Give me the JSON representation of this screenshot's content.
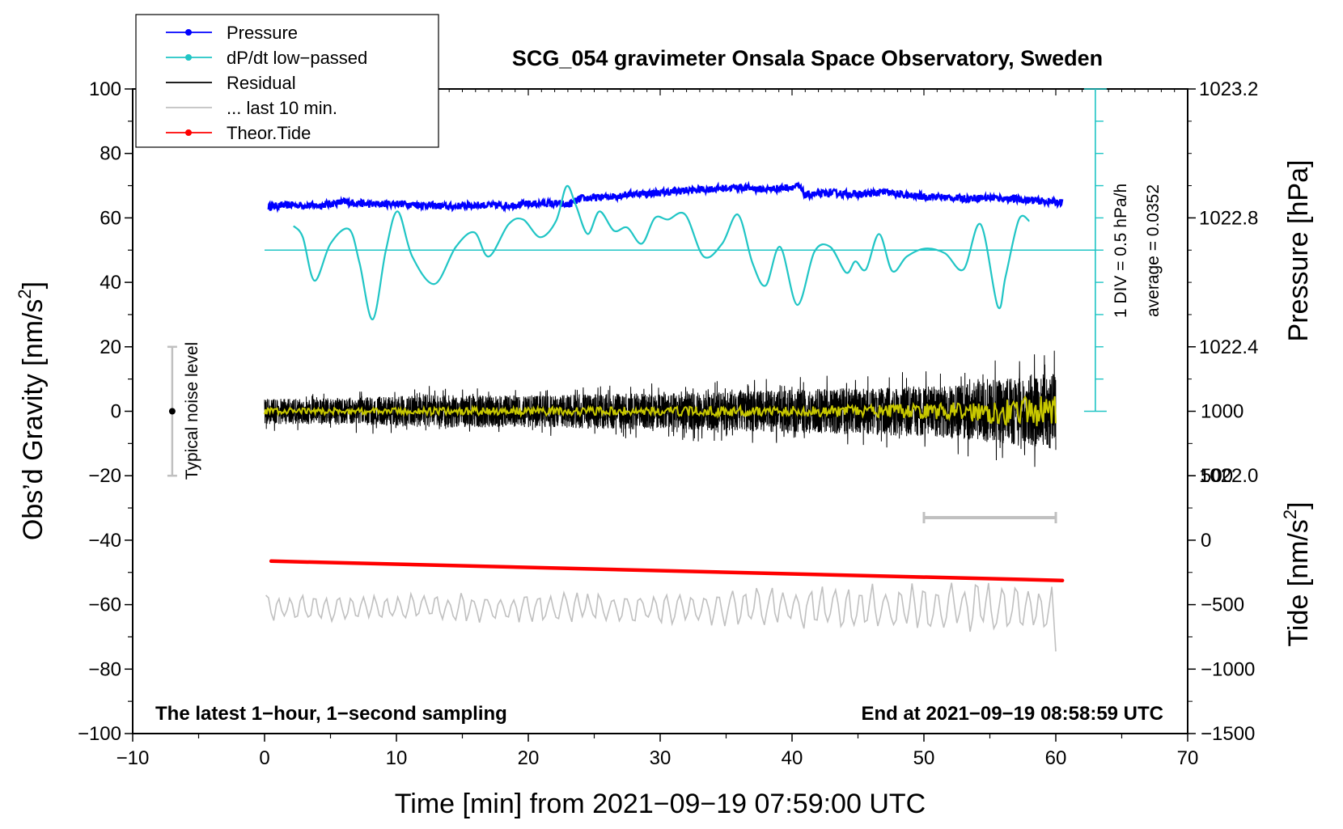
{
  "chart_data": {
    "type": "line",
    "title": "SCG_054 gravimeter Onsala Space Observatory, Sweden",
    "xlabel": "Time [min] from 2021−09−19 07:59:00 UTC",
    "ylabel_left": "Obs’d Gravity [nm/s",
    "ylabel_left_sup": "2",
    "ylabel_left_end": "]",
    "ylabel_right_top": "Pressure [hPa]",
    "ylabel_right_bottom": "Tide [nm/s",
    "ylabel_right_bottom_sup": "2",
    "ylabel_right_bottom_end": "]",
    "xlim": [
      -10,
      70
    ],
    "ylim": [
      -100,
      100
    ],
    "x_ticks": [
      {
        "v": -10,
        "label": "−10"
      },
      {
        "v": 0,
        "label": "0"
      },
      {
        "v": 10,
        "label": "10"
      },
      {
        "v": 20,
        "label": "20"
      },
      {
        "v": 30,
        "label": "30"
      },
      {
        "v": 40,
        "label": "40"
      },
      {
        "v": 50,
        "label": "50"
      },
      {
        "v": 60,
        "label": "60"
      },
      {
        "v": 70,
        "label": "70"
      }
    ],
    "y_ticks": [
      {
        "v": 100,
        "label": "100"
      },
      {
        "v": 80,
        "label": "80"
      },
      {
        "v": 60,
        "label": "60"
      },
      {
        "v": 40,
        "label": "40"
      },
      {
        "v": 20,
        "label": "20"
      },
      {
        "v": 0,
        "label": "0"
      },
      {
        "v": -20,
        "label": "−20"
      },
      {
        "v": -40,
        "label": "−40"
      },
      {
        "v": -60,
        "label": "−60"
      },
      {
        "v": -80,
        "label": "−80"
      },
      {
        "v": -100,
        "label": "−100"
      }
    ],
    "pressure_axis": {
      "ticks": [
        {
          "v": 1023.2,
          "label": "1023.2"
        },
        {
          "v": 1022.8,
          "label": "1022.8"
        },
        {
          "v": 1022.4,
          "label": "1022.4"
        },
        {
          "v": 1022.0,
          "label": "1022.0"
        }
      ],
      "gravity_per_hpa": 100,
      "ref_hpa": 1022.8,
      "ref_gravity": 60
    },
    "tide_axis": {
      "ticks": [
        {
          "v": 1000,
          "label": "1000"
        },
        {
          "v": 500,
          "label": "500"
        },
        {
          "v": 0,
          "label": "0"
        },
        {
          "v": -500,
          "label": "−500"
        },
        {
          "v": -1000,
          "label": "−1000"
        },
        {
          "v": -1500,
          "label": "−1500"
        }
      ],
      "gravity_per_unit": 0.04,
      "ref_tide": -1500,
      "ref_gravity": -100
    },
    "legend": [
      {
        "label": "Pressure",
        "color": "#0000ff",
        "marker": true
      },
      {
        "label": "dP/dt low−passed",
        "color": "#20c5c5",
        "marker": true
      },
      {
        "label": "Residual",
        "color": "#000000",
        "marker": false
      },
      {
        "label": "... last 10 min.",
        "color": "#c0c0c0",
        "marker": false
      },
      {
        "label": "Theor.Tide",
        "color": "#ff0000",
        "marker": true
      }
    ],
    "series": [
      {
        "name": "Pressure",
        "color": "#0000ff",
        "x": [
          0.3,
          2,
          4,
          6,
          8,
          10,
          12,
          14,
          16,
          18,
          20,
          21.5,
          23,
          24,
          26,
          28,
          30,
          32,
          34,
          36,
          38,
          40.5,
          41,
          43,
          45,
          47,
          49,
          51,
          53,
          55,
          57,
          59,
          60.5
        ],
        "y": [
          63.5,
          64.0,
          63.8,
          65.0,
          64.2,
          64.5,
          64.0,
          63.5,
          64.0,
          63.8,
          64.3,
          64.5,
          64.0,
          66.0,
          66.5,
          67.5,
          67.8,
          68.5,
          69.0,
          69.5,
          68.8,
          69.8,
          67.0,
          67.8,
          67.2,
          68.0,
          66.8,
          66.5,
          66.0,
          66.3,
          65.8,
          65.2,
          64.8
        ]
      },
      {
        "name": "dP/dt low−passed",
        "color": "#20c5c5",
        "x": [
          2.2,
          2.9,
          3.8,
          5.0,
          6.4,
          7.2,
          8.2,
          9.2,
          10.1,
          11.2,
          12.9,
          14.5,
          15.9,
          17.0,
          18.5,
          19.6,
          20.9,
          22.1,
          22.9,
          23.6,
          24.5,
          25.4,
          26.5,
          27.5,
          28.6,
          29.6,
          30.6,
          31.9,
          33.3,
          34.7,
          35.9,
          37.0,
          38.0,
          39.1,
          40.4,
          41.7,
          42.9,
          44.1,
          44.8,
          45.6,
          46.6,
          47.6,
          48.7,
          50.1,
          51.6,
          53.0,
          54.3,
          55.6,
          56.2,
          57.2,
          58.0
        ],
        "y": [
          57.5,
          54,
          40.5,
          52,
          56.5,
          46,
          28.5,
          50,
          62,
          48,
          39.5,
          51,
          55.5,
          48,
          58,
          59.5,
          54,
          59,
          69.8,
          64,
          55,
          62,
          56,
          57,
          52,
          60,
          59.5,
          61,
          48,
          52,
          61,
          46,
          39,
          51,
          33,
          49.5,
          51,
          43,
          46.5,
          44,
          55,
          43.5,
          48,
          50.5,
          49,
          44,
          58,
          32.5,
          42,
          59.5,
          59
        ]
      },
      {
        "name": "Residual",
        "color": "#000000",
        "x_range": [
          0,
          60
        ],
        "envelope": [
          4,
          4,
          4.5,
          5,
          5,
          5,
          5.5,
          5.5,
          6,
          6.5,
          7,
          7.5,
          8,
          10,
          12
        ],
        "y_offset": 0
      },
      {
        "name": "Residual smoothed",
        "color": "#c8c800",
        "x_range": [
          0,
          60
        ],
        "envelope": [
          1,
          1,
          1,
          1.2,
          1.2,
          1.3,
          1.3,
          1.4,
          1.5,
          1.6,
          1.8,
          2,
          2.5,
          4,
          5
        ],
        "y_offset": 0
      },
      {
        "name": "... last 10 min.",
        "color": "#c0c0c0",
        "x_range": [
          0,
          60
        ],
        "base": -61,
        "envelope": [
          4,
          4,
          4,
          4,
          4,
          4,
          4.5,
          4.5,
          5,
          5.5,
          6,
          6.5,
          7,
          7.5,
          8
        ],
        "end_y": -74.5
      },
      {
        "name": "Theor.Tide",
        "color": "#ff0000",
        "x": [
          0.5,
          60.5
        ],
        "y": [
          -46.5,
          -52.5
        ]
      }
    ],
    "pressure_zero_line": {
      "y": 50,
      "x_range": [
        0,
        63
      ]
    },
    "scale_bar": {
      "x": 63,
      "y_range": [
        0,
        100
      ],
      "div_label": "1 DIV = 0.5 hPa/h",
      "avg_label": "average = 0.0352"
    },
    "noise_bar": {
      "x": -7,
      "y_range": [
        -20,
        20
      ],
      "label": "Typical noise level"
    },
    "window_bar": {
      "x_range": [
        50,
        60
      ],
      "y": -33
    }
  },
  "footer": {
    "left": "The latest 1−hour, 1−second sampling",
    "right": "End at 2021−09−19 08:58:59 UTC"
  }
}
